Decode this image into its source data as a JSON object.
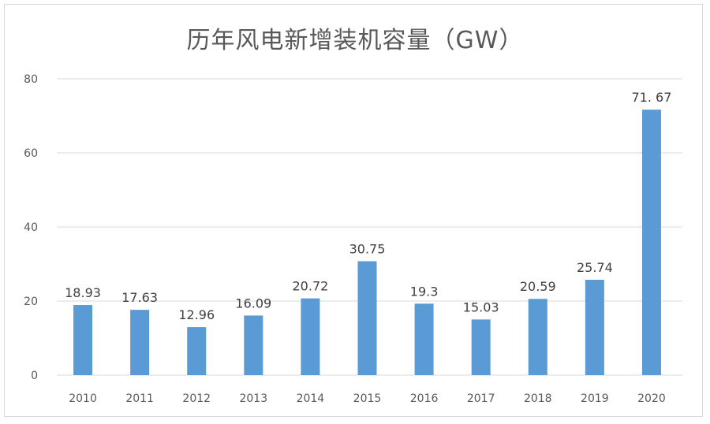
{
  "chart_data": {
    "type": "bar",
    "title": "历年风电新增装机容量（GW）",
    "xlabel": "",
    "ylabel": "",
    "categories": [
      "2010",
      "2011",
      "2012",
      "2013",
      "2014",
      "2015",
      "2016",
      "2017",
      "2018",
      "2019",
      "2020"
    ],
    "values": [
      18.93,
      17.63,
      12.96,
      16.09,
      20.72,
      30.75,
      19.3,
      15.03,
      20.59,
      25.74,
      71.67
    ],
    "data_labels": [
      "18.93",
      "17.63",
      "12.96",
      "16.09",
      "20.72",
      "30.75",
      "19.3",
      "15.03",
      "20.59",
      "25.74",
      "71. 67"
    ],
    "ylim": [
      0,
      80
    ],
    "yticks": [
      "0",
      "20",
      "40",
      "60",
      "80"
    ],
    "grid": true,
    "legend": "none",
    "bar_color": "#5b9bd5"
  }
}
